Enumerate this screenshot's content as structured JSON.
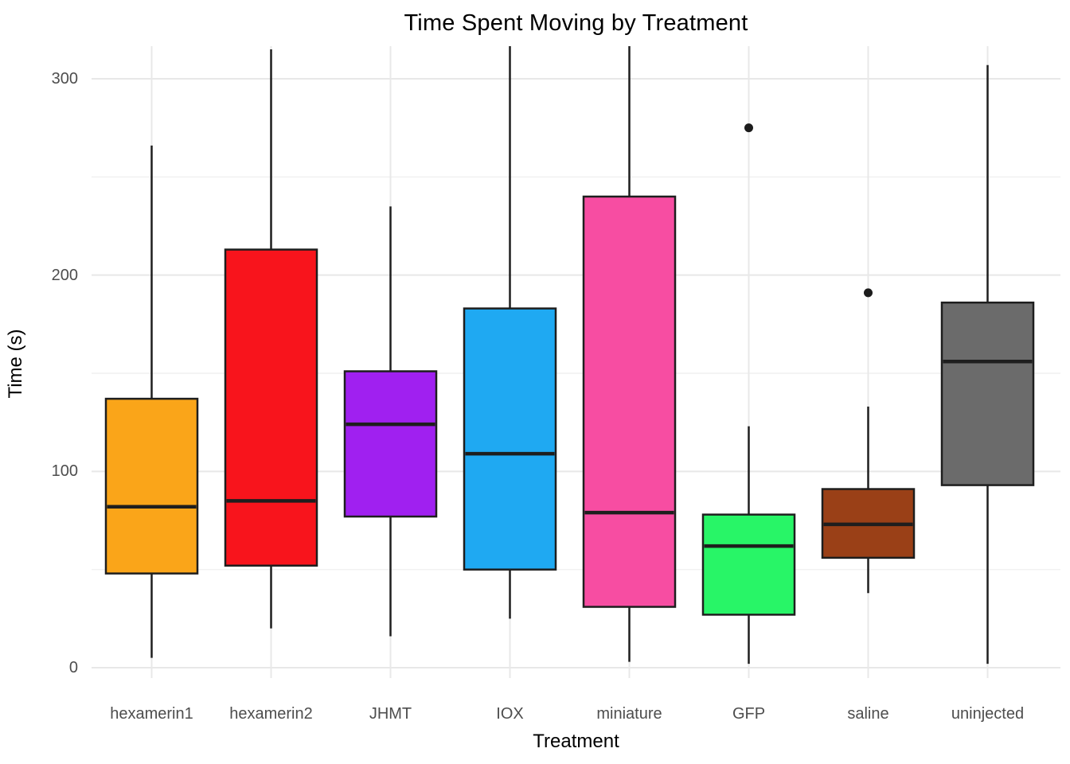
{
  "title": "Time Spent Moving by Treatment",
  "chart_data": {
    "type": "boxplot",
    "title": "Time Spent Moving by Treatment",
    "xlabel": "Treatment",
    "ylabel": "Time (s)",
    "ylim": [
      -5,
      317
    ],
    "yticks": [
      0,
      100,
      200,
      300
    ],
    "minor_gridlines": [
      50,
      150,
      250
    ],
    "grid": true,
    "legend": "none",
    "categories": [
      "hexamerin1",
      "hexamerin2",
      "JHMT",
      "IOX",
      "miniature",
      "GFP",
      "saline",
      "uninjected"
    ],
    "series": [
      {
        "name": "hexamerin1",
        "color": "#FAA519",
        "whisker_low": 5,
        "q1": 48,
        "median": 82,
        "q3": 137,
        "whisker_high": 266,
        "outliers": []
      },
      {
        "name": "hexamerin2",
        "color": "#F8141C",
        "whisker_low": 20,
        "q1": 52,
        "median": 85,
        "q3": 213,
        "whisker_high": 315,
        "outliers": []
      },
      {
        "name": "JHMT",
        "color": "#A020F0",
        "whisker_low": 16,
        "q1": 77,
        "median": 124,
        "q3": 151,
        "whisker_high": 235,
        "outliers": []
      },
      {
        "name": "IOX",
        "color": "#1FA9F2",
        "whisker_low": 25,
        "q1": 50,
        "median": 109,
        "q3": 183,
        "whisker_high": 318,
        "outliers": []
      },
      {
        "name": "miniature",
        "color": "#F74DA2",
        "whisker_low": 3,
        "q1": 31,
        "median": 79,
        "q3": 240,
        "whisker_high": 320,
        "outliers": []
      },
      {
        "name": "GFP",
        "color": "#28F567",
        "whisker_low": 2,
        "q1": 27,
        "median": 62,
        "q3": 78,
        "whisker_high": 123,
        "outliers": [
          275
        ]
      },
      {
        "name": "saline",
        "color": "#9A4017",
        "whisker_low": 38,
        "q1": 56,
        "median": 73,
        "q3": 91,
        "whisker_high": 133,
        "outliers": [
          191
        ]
      },
      {
        "name": "uninjected",
        "color": "#6B6B6B",
        "whisker_low": 2,
        "q1": 93,
        "median": 156,
        "q3": 186,
        "whisker_high": 307,
        "outliers": []
      }
    ],
    "style": {
      "box_border_color": "#1E1E1E",
      "outlier_color": "#1C1C1C",
      "major_grid_color": "#E8E8E8",
      "minor_grid_color": "#F1F1F1",
      "axis_text_color": "#4D4D4D",
      "background": "#FFFFFF"
    }
  }
}
